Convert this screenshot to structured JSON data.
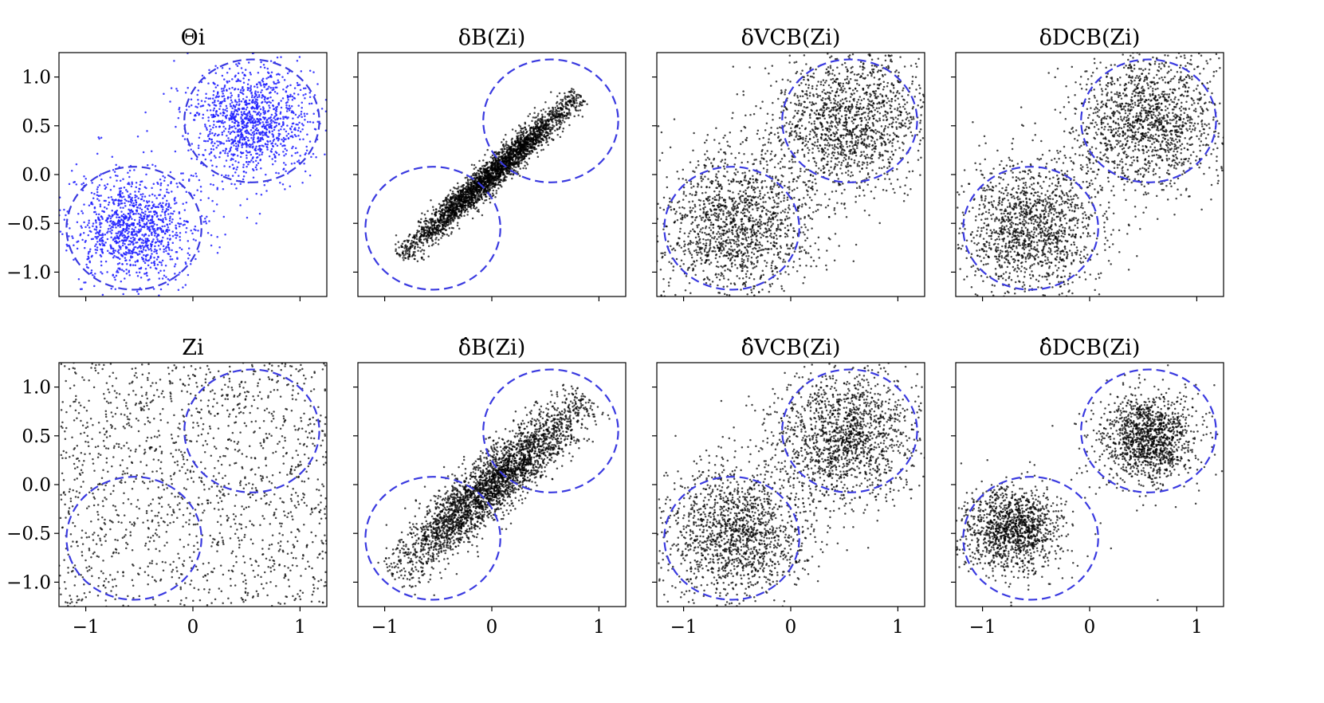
{
  "chart_data": {
    "type": "scatter",
    "layout": "2x4 grid",
    "xlim": [
      -1.25,
      1.25
    ],
    "ylim": [
      -1.25,
      1.25
    ],
    "xticks": [
      -1,
      0,
      1
    ],
    "xtick_labels": [
      "−1",
      "0",
      "1"
    ],
    "yticks": [
      1.0,
      0.5,
      0.0,
      -0.5,
      -1.0
    ],
    "ytick_labels": [
      "1.0",
      "0.5",
      "0.0",
      "−0.5",
      "−1.0"
    ],
    "colors": {
      "blue_points": "#2020ff",
      "black_points": "#000000",
      "circle": "#3a3ae0"
    },
    "reference_circles": [
      {
        "cx": -0.55,
        "cy": -0.55,
        "r": 0.63
      },
      {
        "cx": 0.55,
        "cy": 0.55,
        "r": 0.63
      }
    ],
    "panels": [
      {
        "id": "p11",
        "row": 0,
        "col": 0,
        "title": "Θi",
        "point_color": "blue",
        "distribution": {
          "kind": "two_clusters",
          "centers": [
            [
              -0.55,
              -0.55
            ],
            [
              0.55,
              0.55
            ]
          ],
          "sd": 0.28,
          "n": 2400,
          "noise_fraction": 0.06
        }
      },
      {
        "id": "p12",
        "row": 0,
        "col": 1,
        "title": "δB(Zi)",
        "point_color": "black",
        "distribution": {
          "kind": "diagonal_band",
          "t_range": [
            -0.85,
            0.82
          ],
          "sd_along": 0.42,
          "sd_perp": 0.065,
          "n": 3000
        }
      },
      {
        "id": "p13",
        "row": 0,
        "col": 2,
        "title": "δVCB(Zi)",
        "point_color": "black",
        "distribution": {
          "kind": "two_clusters",
          "centers": [
            [
              -0.5,
              -0.5
            ],
            [
              0.55,
              0.55
            ]
          ],
          "sd": 0.36,
          "n": 3000,
          "noise_fraction": 0.1
        }
      },
      {
        "id": "p14",
        "row": 0,
        "col": 3,
        "title": "δDCB(Zi)",
        "point_color": "black",
        "distribution": {
          "kind": "two_clusters",
          "centers": [
            [
              -0.55,
              -0.55
            ],
            [
              0.55,
              0.55
            ]
          ],
          "sd": 0.33,
          "n": 2900,
          "noise_fraction": 0.1
        }
      },
      {
        "id": "p21",
        "row": 1,
        "col": 0,
        "title": "Zi",
        "point_color": "black",
        "distribution": {
          "kind": "uniform",
          "range": [
            -1.25,
            1.25
          ],
          "n": 1500
        }
      },
      {
        "id": "p22",
        "row": 1,
        "col": 1,
        "title": "δ̂B(Zi)",
        "point_color": "black",
        "distribution": {
          "kind": "diagonal_band",
          "t_range": [
            -0.95,
            0.9
          ],
          "sd_along": 0.45,
          "sd_perp": 0.13,
          "n": 3000
        }
      },
      {
        "id": "p23",
        "row": 1,
        "col": 2,
        "title": "δ̂VCB(Zi)",
        "point_color": "black",
        "distribution": {
          "kind": "two_clusters",
          "centers": [
            [
              -0.5,
              -0.5
            ],
            [
              0.5,
              0.5
            ]
          ],
          "sd": 0.33,
          "n": 3000,
          "noise_fraction": 0.08
        }
      },
      {
        "id": "p24",
        "row": 1,
        "col": 3,
        "title": "δ̂DCB(Zi)",
        "point_color": "black",
        "distribution": {
          "kind": "two_clusters",
          "centers": [
            [
              -0.72,
              -0.45
            ],
            [
              0.55,
              0.48
            ]
          ],
          "sd": 0.22,
          "n": 2600,
          "noise_fraction": 0.03
        }
      }
    ]
  }
}
